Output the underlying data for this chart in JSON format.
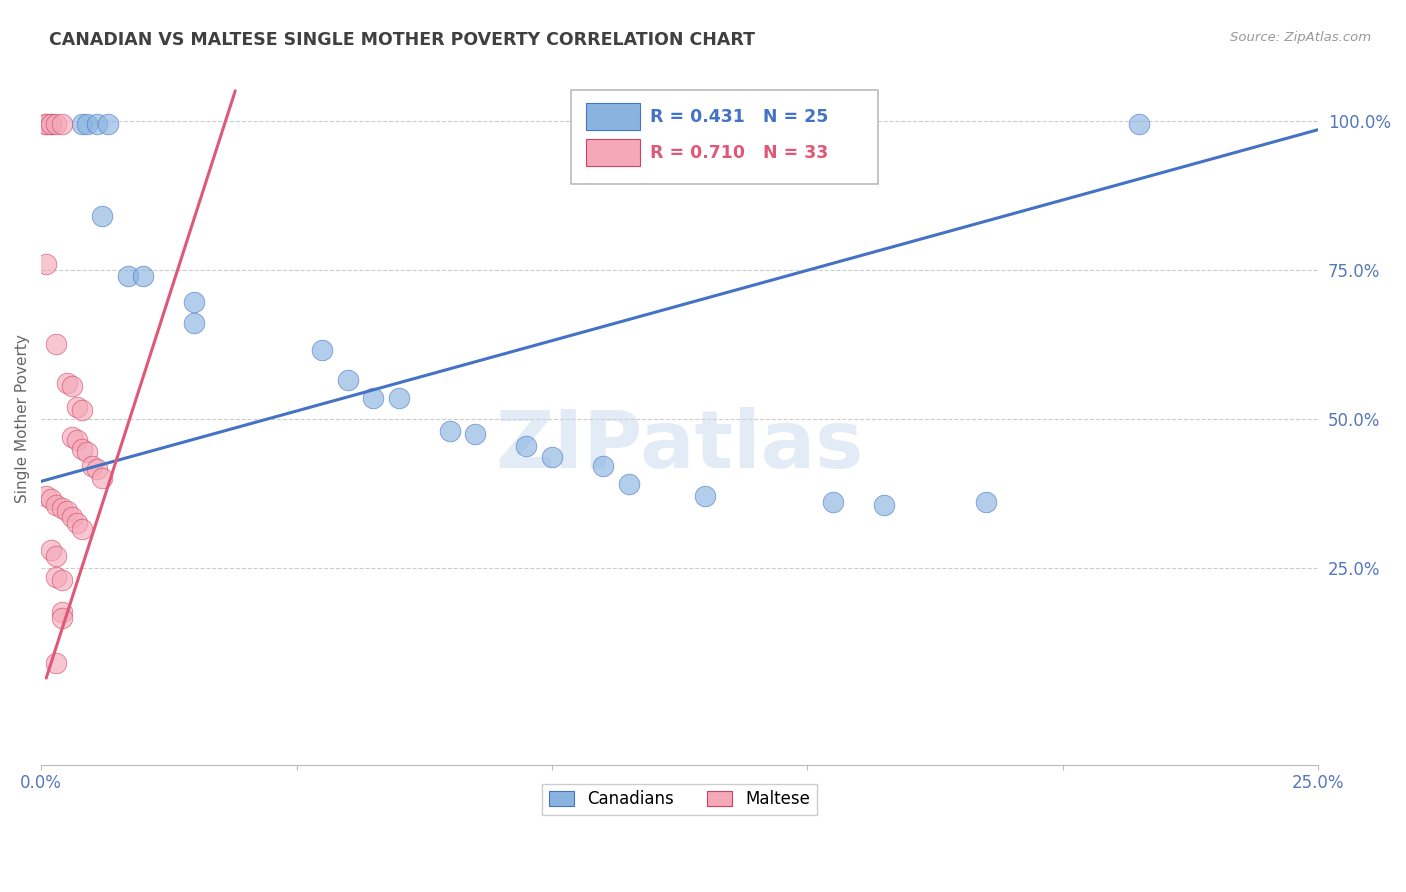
{
  "title": "CANADIAN VS MALTESE SINGLE MOTHER POVERTY CORRELATION CHART",
  "source": "Source: ZipAtlas.com",
  "ylabel": "Single Mother Poverty",
  "xmin": 0.0,
  "xmax": 0.25,
  "ymin": -0.08,
  "ymax": 1.08,
  "yticks": [
    0.25,
    0.5,
    0.75,
    1.0
  ],
  "ytick_labels": [
    "25.0%",
    "50.0%",
    "75.0%",
    "100.0%"
  ],
  "xticks": [
    0.0,
    0.05,
    0.1,
    0.15,
    0.2,
    0.25
  ],
  "xtick_labels": [
    "0.0%",
    "",
    "",
    "",
    "",
    "25.0%"
  ],
  "canadian_color": "#8ab4e0",
  "maltese_color": "#f4a8b8",
  "canadian_line_color": "#4472c4",
  "maltese_line_color": "#e05878",
  "background_color": "#ffffff",
  "grid_color": "#cccccc",
  "axis_label_color": "#5577bb",
  "title_color": "#404040",
  "canadian_points": [
    [
      0.002,
      0.995
    ],
    [
      0.008,
      0.995
    ],
    [
      0.009,
      0.995
    ],
    [
      0.011,
      0.995
    ],
    [
      0.013,
      0.995
    ],
    [
      0.012,
      0.84
    ],
    [
      0.017,
      0.74
    ],
    [
      0.02,
      0.74
    ],
    [
      0.03,
      0.695
    ],
    [
      0.03,
      0.66
    ],
    [
      0.055,
      0.615
    ],
    [
      0.06,
      0.565
    ],
    [
      0.065,
      0.535
    ],
    [
      0.07,
      0.535
    ],
    [
      0.08,
      0.48
    ],
    [
      0.085,
      0.475
    ],
    [
      0.095,
      0.455
    ],
    [
      0.1,
      0.435
    ],
    [
      0.11,
      0.42
    ],
    [
      0.115,
      0.39
    ],
    [
      0.13,
      0.37
    ],
    [
      0.155,
      0.36
    ],
    [
      0.165,
      0.355
    ],
    [
      0.185,
      0.36
    ],
    [
      0.215,
      0.995
    ]
  ],
  "maltese_points": [
    [
      0.001,
      0.995
    ],
    [
      0.001,
      0.995
    ],
    [
      0.002,
      0.995
    ],
    [
      0.003,
      0.995
    ],
    [
      0.004,
      0.995
    ],
    [
      0.001,
      0.76
    ],
    [
      0.003,
      0.625
    ],
    [
      0.005,
      0.56
    ],
    [
      0.006,
      0.555
    ],
    [
      0.007,
      0.52
    ],
    [
      0.008,
      0.515
    ],
    [
      0.006,
      0.47
    ],
    [
      0.007,
      0.465
    ],
    [
      0.008,
      0.45
    ],
    [
      0.009,
      0.445
    ],
    [
      0.01,
      0.42
    ],
    [
      0.011,
      0.415
    ],
    [
      0.012,
      0.4
    ],
    [
      0.001,
      0.37
    ],
    [
      0.002,
      0.365
    ],
    [
      0.003,
      0.355
    ],
    [
      0.004,
      0.35
    ],
    [
      0.005,
      0.345
    ],
    [
      0.006,
      0.335
    ],
    [
      0.007,
      0.325
    ],
    [
      0.008,
      0.315
    ],
    [
      0.002,
      0.28
    ],
    [
      0.003,
      0.27
    ],
    [
      0.003,
      0.235
    ],
    [
      0.004,
      0.23
    ],
    [
      0.004,
      0.175
    ],
    [
      0.004,
      0.165
    ],
    [
      0.003,
      0.09
    ]
  ],
  "canadian_line_x": [
    0.0,
    0.25
  ],
  "canadian_line_y": [
    0.395,
    0.985
  ],
  "maltese_line_x": [
    0.001,
    0.038
  ],
  "maltese_line_y": [
    0.065,
    1.05
  ],
  "maltese_line_dash": [
    6,
    4
  ],
  "watermark_text": "ZIPatlas",
  "watermark_color": "#c8d8f0",
  "watermark_alpha": 0.5
}
